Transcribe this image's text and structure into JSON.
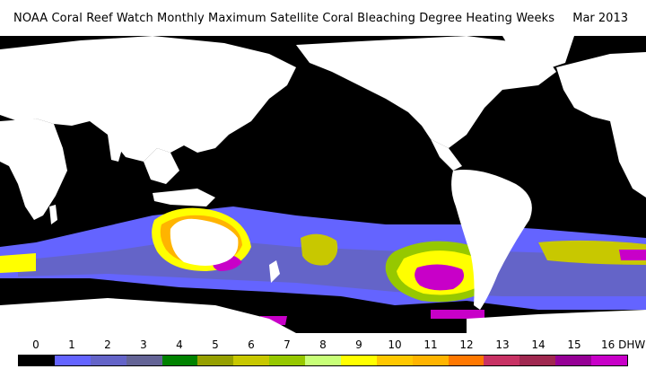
{
  "header": {
    "title": "NOAA Coral Reef Watch Monthly Maximum Satellite Coral Bleaching Degree Heating Weeks",
    "date": "Mar 2013"
  },
  "legend": {
    "labels": [
      "0",
      "1",
      "2",
      "3",
      "4",
      "5",
      "6",
      "7",
      "8",
      "9",
      "10",
      "11",
      "12",
      "13",
      "14",
      "15",
      "16 DHW"
    ],
    "colors": [
      "#000000",
      "#6464ff",
      "#6464c8",
      "#646496",
      "#008200",
      "#96a000",
      "#c8c800",
      "#96c800",
      "#c8ff78",
      "#ffff00",
      "#ffc800",
      "#ffb400",
      "#ff7800",
      "#c83264",
      "#a02850",
      "#960096",
      "#c800c8"
    ]
  },
  "colors": {
    "ocean": "#000000",
    "land": "#ffffff"
  }
}
